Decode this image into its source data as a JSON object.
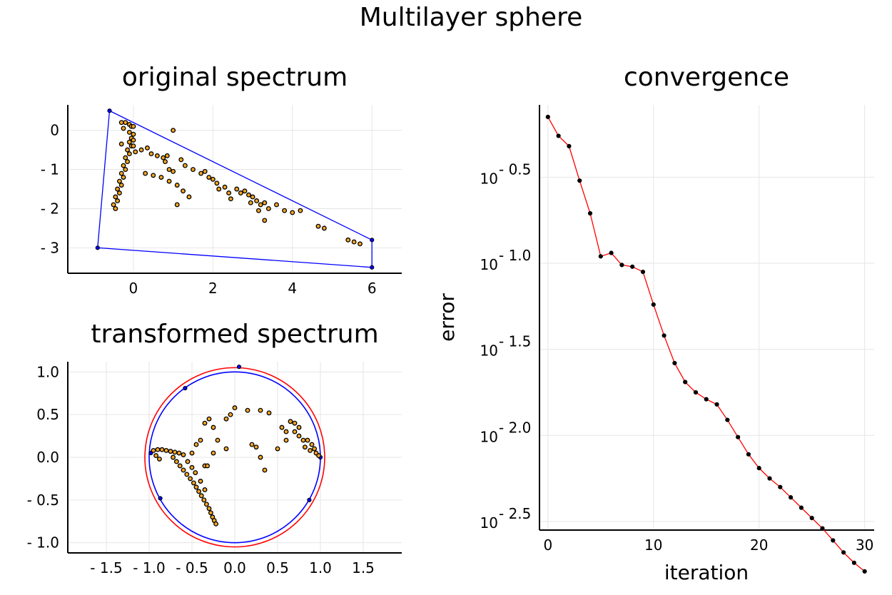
{
  "suptitle": "Multilayer sphere",
  "colors": {
    "points": "#f5a623",
    "points_edge": "#000000",
    "polygon": "#0000ff",
    "circle_outer": "#ff0000",
    "circle_inner": "#0000ff",
    "convergence_line": "#ff0000",
    "convergence_marker": "#000000"
  },
  "chart_data": [
    {
      "id": "original",
      "type": "scatter",
      "title": "original spectrum",
      "xlabel": "",
      "ylabel": "",
      "xlim": [
        -1.65,
        6.75
      ],
      "ylim": [
        -3.65,
        0.65
      ],
      "xticks": [
        0,
        2,
        4,
        6
      ],
      "xtick_labels": [
        "0",
        "2",
        "4",
        "6"
      ],
      "yticks": [
        0,
        -1,
        -2,
        -3
      ],
      "ytick_labels": [
        "0",
        "- 1",
        "- 2",
        "- 3"
      ],
      "grid": true,
      "polygon": [
        [
          -0.6,
          0.5
        ],
        [
          6.0,
          -2.8
        ],
        [
          6.0,
          -3.5
        ],
        [
          -0.9,
          -3.0
        ]
      ],
      "points": [
        [
          -0.3,
          0.2
        ],
        [
          -0.2,
          0.2
        ],
        [
          -0.1,
          0.15
        ],
        [
          -0.05,
          0.1
        ],
        [
          0.0,
          0.1
        ],
        [
          -0.25,
          0.05
        ],
        [
          -0.1,
          -0.05
        ],
        [
          0.0,
          -0.1
        ],
        [
          -0.05,
          -0.2
        ],
        [
          0.0,
          -0.25
        ],
        [
          -0.1,
          -0.3
        ],
        [
          -0.05,
          -0.4
        ],
        [
          -0.15,
          -0.5
        ],
        [
          -0.1,
          -0.6
        ],
        [
          -0.2,
          -0.7
        ],
        [
          -0.15,
          -0.8
        ],
        [
          -0.25,
          -0.9
        ],
        [
          -0.2,
          -1.0
        ],
        [
          -0.3,
          -1.1
        ],
        [
          -0.25,
          -1.2
        ],
        [
          -0.35,
          -1.3
        ],
        [
          -0.3,
          -1.4
        ],
        [
          -0.4,
          -1.5
        ],
        [
          -0.35,
          -1.6
        ],
        [
          -0.45,
          -1.7
        ],
        [
          -0.4,
          -1.8
        ],
        [
          -0.5,
          -1.9
        ],
        [
          -0.45,
          -2.0
        ],
        [
          -0.3,
          -0.35
        ],
        [
          0.0,
          -0.4
        ],
        [
          1.0,
          0.0
        ],
        [
          0.35,
          -0.45
        ],
        [
          0.45,
          -0.6
        ],
        [
          0.6,
          -0.65
        ],
        [
          0.75,
          -0.7
        ],
        [
          0.85,
          -0.65
        ],
        [
          0.8,
          -0.8
        ],
        [
          0.9,
          -1.0
        ],
        [
          1.0,
          -1.05
        ],
        [
          1.2,
          -0.75
        ],
        [
          1.3,
          -0.9
        ],
        [
          1.5,
          -1.0
        ],
        [
          1.7,
          -1.1
        ],
        [
          1.8,
          -1.05
        ],
        [
          1.9,
          -1.2
        ],
        [
          2.0,
          -1.25
        ],
        [
          2.1,
          -1.35
        ],
        [
          2.15,
          -1.5
        ],
        [
          2.3,
          -1.45
        ],
        [
          2.4,
          -1.6
        ],
        [
          2.6,
          -1.5
        ],
        [
          2.8,
          -1.55
        ],
        [
          2.9,
          -1.65
        ],
        [
          3.0,
          -1.7
        ],
        [
          3.1,
          -1.8
        ],
        [
          3.2,
          -1.9
        ],
        [
          3.3,
          -1.85
        ],
        [
          3.4,
          -2.0
        ],
        [
          3.6,
          -1.9
        ],
        [
          3.8,
          -2.05
        ],
        [
          4.0,
          -2.1
        ],
        [
          4.2,
          -2.05
        ],
        [
          0.3,
          -1.1
        ],
        [
          0.5,
          -1.15
        ],
        [
          0.7,
          -1.2
        ],
        [
          0.9,
          -1.3
        ],
        [
          1.1,
          -1.4
        ],
        [
          1.25,
          -1.55
        ],
        [
          1.4,
          -1.7
        ],
        [
          1.1,
          -1.9
        ],
        [
          0.05,
          -0.55
        ],
        [
          0.2,
          -0.5
        ],
        [
          2.45,
          -1.75
        ],
        [
          2.7,
          -1.6
        ],
        [
          2.95,
          -1.85
        ],
        [
          3.15,
          -2.05
        ],
        [
          4.65,
          -2.45
        ],
        [
          4.8,
          -2.5
        ],
        [
          5.4,
          -2.8
        ],
        [
          5.55,
          -2.85
        ],
        [
          5.7,
          -2.9
        ],
        [
          3.3,
          -2.3
        ]
      ]
    },
    {
      "id": "transformed",
      "type": "scatter",
      "title": "transformed spectrum",
      "xlabel": "",
      "ylabel": "",
      "xlim": [
        -1.95,
        1.95
      ],
      "ylim": [
        -1.12,
        1.12
      ],
      "xticks": [
        -1.5,
        -1.0,
        -0.5,
        0.0,
        0.5,
        1.0,
        1.5
      ],
      "xtick_labels": [
        "- 1.5",
        "- 1.0",
        "- 0.5",
        "0.0",
        "0.5",
        "1.0",
        "1.5"
      ],
      "yticks": [
        1.0,
        0.5,
        0.0,
        -0.5,
        -1.0
      ],
      "ytick_labels": [
        "1.0",
        "0.5",
        "0.0",
        "- 0.5",
        "- 1.0"
      ],
      "grid": true,
      "circles": [
        {
          "r": 1.05,
          "color": "red"
        },
        {
          "r": 1.0,
          "color": "blue"
        }
      ],
      "boundary_points": [
        [
          0.05,
          1.06
        ],
        [
          -0.58,
          0.81
        ],
        [
          -0.98,
          0.05
        ],
        [
          1.0,
          0.0
        ],
        [
          -0.87,
          -0.48
        ],
        [
          0.87,
          -0.5
        ]
      ],
      "points": [
        [
          -0.95,
          0.08
        ],
        [
          -0.9,
          0.09
        ],
        [
          -0.85,
          0.09
        ],
        [
          -0.8,
          0.08
        ],
        [
          -0.75,
          0.07
        ],
        [
          -0.7,
          0.06
        ],
        [
          -0.65,
          0.05
        ],
        [
          -0.6,
          0.03
        ],
        [
          -0.72,
          0.0
        ],
        [
          -0.68,
          -0.05
        ],
        [
          -0.64,
          -0.1
        ],
        [
          -0.6,
          -0.15
        ],
        [
          -0.56,
          -0.2
        ],
        [
          -0.52,
          -0.25
        ],
        [
          -0.48,
          -0.3
        ],
        [
          -0.45,
          -0.35
        ],
        [
          -0.42,
          -0.4
        ],
        [
          -0.39,
          -0.45
        ],
        [
          -0.36,
          -0.5
        ],
        [
          -0.33,
          -0.55
        ],
        [
          -0.3,
          -0.6
        ],
        [
          -0.28,
          -0.65
        ],
        [
          -0.26,
          -0.7
        ],
        [
          -0.24,
          -0.74
        ],
        [
          -0.22,
          -0.78
        ],
        [
          -0.55,
          -0.05
        ],
        [
          -0.5,
          -0.12
        ],
        [
          -0.46,
          -0.18
        ],
        [
          -0.4,
          -0.28
        ],
        [
          -0.35,
          -0.38
        ],
        [
          -0.92,
          0.02
        ],
        [
          -0.88,
          -0.02
        ],
        [
          -0.3,
          0.45
        ],
        [
          -0.35,
          0.4
        ],
        [
          -0.25,
          0.35
        ],
        [
          -0.4,
          0.2
        ],
        [
          -0.45,
          0.15
        ],
        [
          -0.5,
          0.05
        ],
        [
          -0.25,
          0.05
        ],
        [
          -0.2,
          0.2
        ],
        [
          -0.1,
          0.45
        ],
        [
          -0.05,
          0.5
        ],
        [
          -0.35,
          -0.1
        ],
        [
          -0.32,
          -0.1
        ],
        [
          0.0,
          0.58
        ],
        [
          0.15,
          0.55
        ],
        [
          0.3,
          0.55
        ],
        [
          0.4,
          0.52
        ],
        [
          0.65,
          0.42
        ],
        [
          0.7,
          0.4
        ],
        [
          0.7,
          0.3
        ],
        [
          0.75,
          0.25
        ],
        [
          0.8,
          0.2
        ],
        [
          0.85,
          0.2
        ],
        [
          0.9,
          0.15
        ],
        [
          0.93,
          0.1
        ],
        [
          0.95,
          0.05
        ],
        [
          0.98,
          0.02
        ],
        [
          0.55,
          0.35
        ],
        [
          0.6,
          0.3
        ],
        [
          0.2,
          0.15
        ],
        [
          0.25,
          0.12
        ],
        [
          0.3,
          0.0
        ],
        [
          0.35,
          -0.15
        ],
        [
          -0.1,
          0.1
        ],
        [
          0.5,
          0.1
        ],
        [
          0.75,
          0.35
        ],
        [
          0.82,
          0.12
        ],
        [
          0.88,
          0.08
        ],
        [
          0.6,
          0.2
        ]
      ]
    },
    {
      "id": "convergence",
      "type": "line",
      "title": "convergence",
      "xlabel": "iteration",
      "ylabel": "error",
      "yscale": "log10",
      "xlim": [
        -0.8,
        30.9
      ],
      "ylim_log10": [
        -2.55,
        -0.08
      ],
      "xticks": [
        0,
        10,
        20,
        30
      ],
      "xtick_labels": [
        "0",
        "10",
        "20",
        "30"
      ],
      "yticks_log10": [
        -0.5,
        -1.0,
        -1.5,
        -2.0,
        -2.5
      ],
      "ytick_base": "10",
      "ytick_exponents": [
        "- 0.5",
        "- 1.0",
        "- 1.5",
        "- 2.0",
        "- 2.5"
      ],
      "grid": true,
      "x": [
        0,
        1,
        2,
        3,
        4,
        5,
        6,
        7,
        8,
        9,
        10,
        11,
        12,
        13,
        14,
        15,
        16,
        17,
        18,
        19,
        20,
        21,
        22,
        23,
        24,
        25,
        26,
        27,
        28,
        29,
        30
      ],
      "log10_error": [
        -0.15,
        -0.26,
        -0.32,
        -0.52,
        -0.71,
        -0.96,
        -0.94,
        -1.01,
        -1.02,
        -1.05,
        -1.24,
        -1.42,
        -1.58,
        -1.69,
        -1.75,
        -1.79,
        -1.82,
        -1.91,
        -2.01,
        -2.11,
        -2.19,
        -2.25,
        -2.3,
        -2.36,
        -2.42,
        -2.48,
        -2.54,
        -2.61,
        -2.68,
        -2.74,
        -2.79
      ]
    }
  ]
}
